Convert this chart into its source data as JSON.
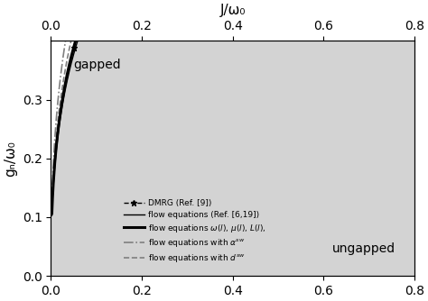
{
  "title": "J/ω₀",
  "xlabel_top": "J/ω₀",
  "ylabel": "gₙ/ω₀",
  "xlim": [
    0.0,
    0.8
  ],
  "ylim": [
    0.0,
    0.4
  ],
  "xticks": [
    0.0,
    0.2,
    0.4,
    0.6,
    0.8
  ],
  "yticks": [
    0.0,
    0.1,
    0.2,
    0.3
  ],
  "label_gapped": "gapped",
  "label_ungapped": "ungapped",
  "background_color": "#d3d3d3",
  "legend": [
    {
      "label": "DMRG (Ref. [9])",
      "style": "dashed_star"
    },
    {
      "label": "flow equations (Ref. [6,19])",
      "style": "thin_solid"
    },
    {
      "label": "flow equations ω(l), μ(l), L(l),",
      "style": "thick_solid"
    },
    {
      "label": "flow equations with αˢʷ",
      "style": "dashdot"
    },
    {
      "label": "flow equations with dˢʷ",
      "style": "dashed"
    }
  ]
}
